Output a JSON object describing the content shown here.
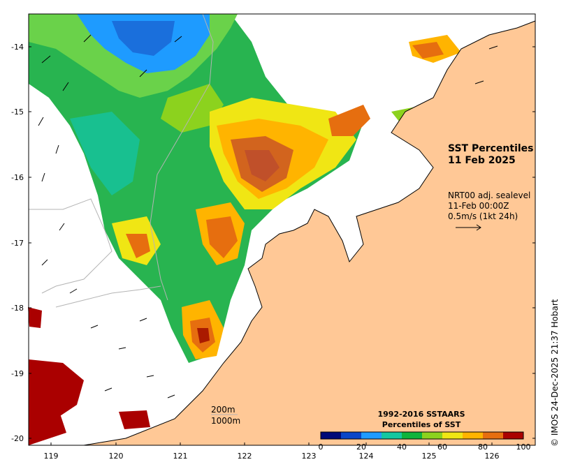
{
  "map": {
    "title_line1": "SST Percentiles",
    "title_line2": "11 Feb 2025",
    "wind_line1": "NRT00 adj. sealevel",
    "wind_line2": "11-Feb 00:00Z",
    "wind_line3": "0.5m/s (1kt 24h)",
    "contour_label_1": "200m",
    "contour_label_2": "1000m",
    "credit": "© IMOS 24-Dec-2025 21:37 Hobart",
    "lon_ticks": [
      "119",
      "120",
      "121",
      "122",
      "123",
      "124",
      "125",
      "126"
    ],
    "lat_ticks": [
      "-14",
      "-15",
      "-16",
      "-17",
      "-18",
      "-19",
      "-20"
    ],
    "colorbar": {
      "title_line1": "1992-2016 SSTAARS",
      "title_line2": "Percentiles of SST",
      "tick_labels": [
        "0",
        "20",
        "40",
        "60",
        "80",
        "100"
      ],
      "colors": [
        "#000a78",
        "#0a46c8",
        "#1e9bff",
        "#14c8a0",
        "#0fb43c",
        "#8cd21e",
        "#f0e614",
        "#ffb400",
        "#e66e0f",
        "#aa0000"
      ]
    },
    "colors": {
      "land": "#ffc896",
      "nodata": "#ffffff"
    }
  }
}
